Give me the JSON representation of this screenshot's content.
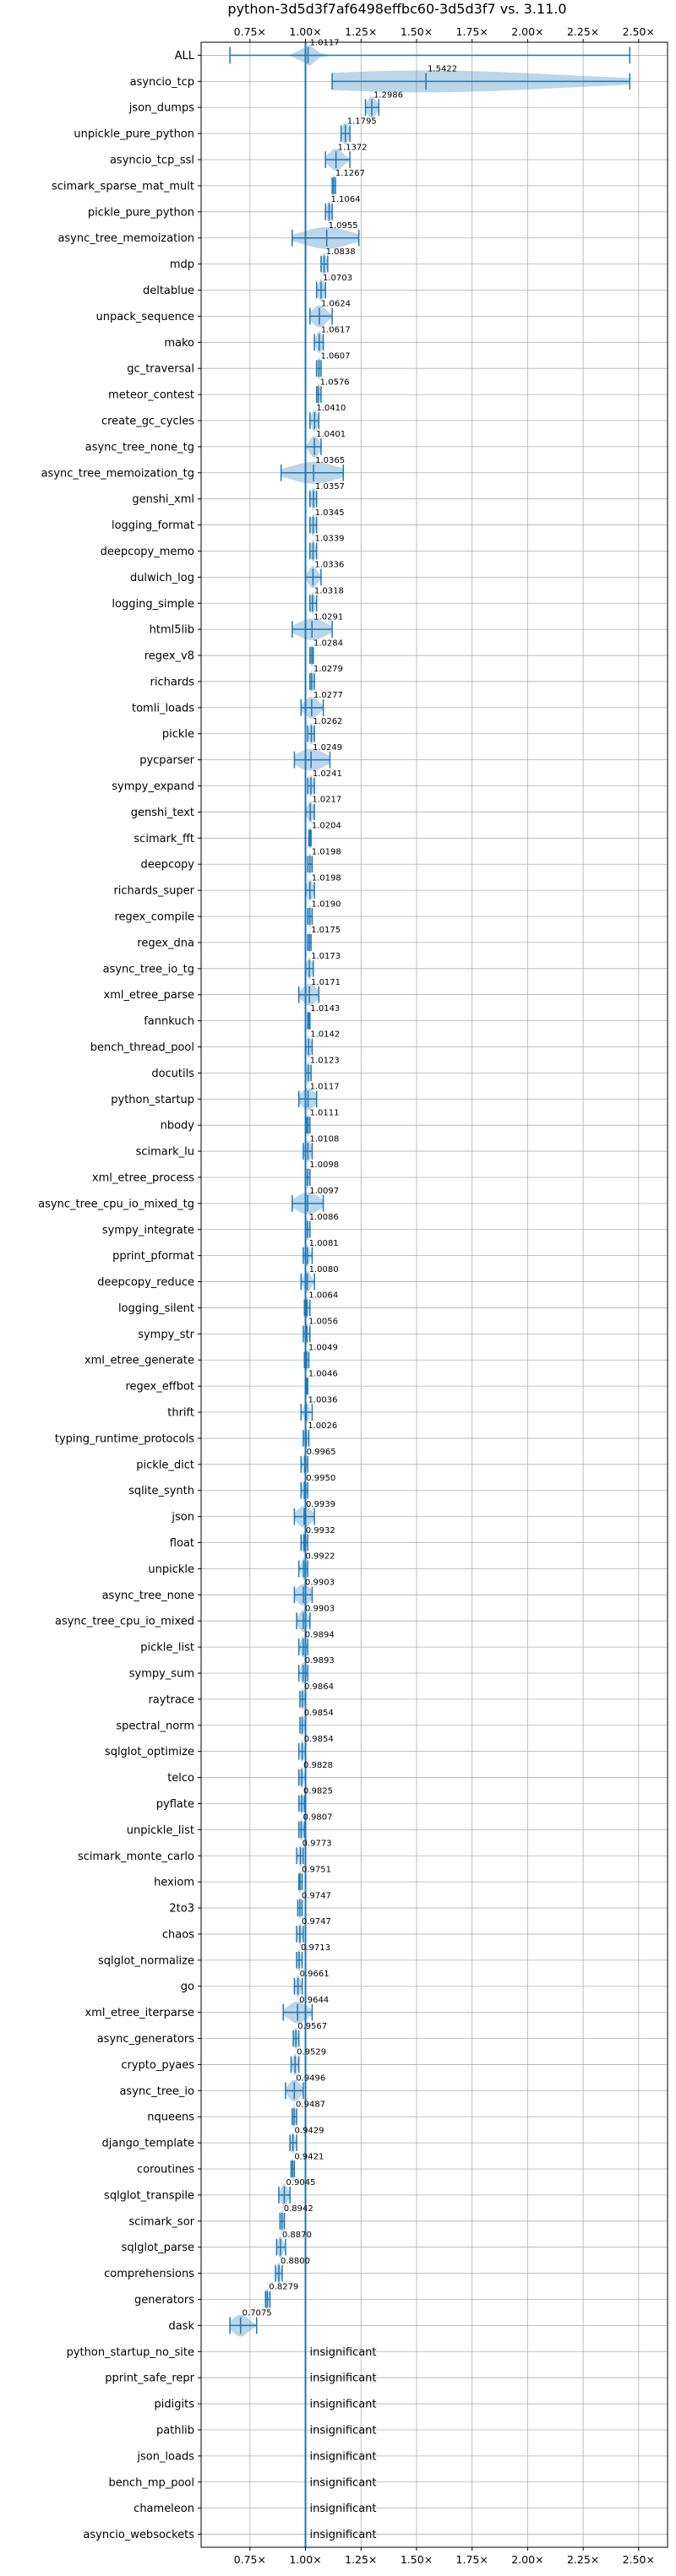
{
  "chart_data": {
    "type": "violin",
    "title": "python-3d5d3f7af6498effbc60-3d5d3f7 vs. 3.11.0",
    "x_ticks": [
      {
        "v": 0.75,
        "label": "0.75×"
      },
      {
        "v": 1.0,
        "label": "1.00×"
      },
      {
        "v": 1.25,
        "label": "1.25×"
      },
      {
        "v": 1.5,
        "label": "1.50×"
      },
      {
        "v": 1.75,
        "label": "1.75×"
      },
      {
        "v": 2.0,
        "label": "2.00×"
      },
      {
        "v": 2.25,
        "label": "2.25×"
      },
      {
        "v": 2.5,
        "label": "2.50×"
      }
    ],
    "xlim": [
      0.53,
      2.63
    ],
    "reference_x": 1.0,
    "grid": true,
    "colors": {
      "violin": "#1f77b4",
      "reference": "#1f77b4",
      "grid": "#b0b0b0"
    },
    "insignificant_label": "insignificant",
    "benchmarks": [
      {
        "name": "ALL",
        "value": 1.0117,
        "label": "1.0117",
        "min": 0.66,
        "max": 2.46,
        "spread": 0.03
      },
      {
        "name": "asyncio_tcp",
        "value": 1.5422,
        "label": "1.5422",
        "min": 1.12,
        "max": 2.46,
        "spread": 0.6
      },
      {
        "name": "json_dumps",
        "value": 1.2986,
        "label": "1.2986",
        "min": 1.27,
        "max": 1.33,
        "spread": 0.02
      },
      {
        "name": "unpickle_pure_python",
        "value": 1.1795,
        "label": "1.1795",
        "min": 1.16,
        "max": 1.2,
        "spread": 0.015
      },
      {
        "name": "asyncio_tcp_ssl",
        "value": 1.1372,
        "label": "1.1372",
        "min": 1.09,
        "max": 1.2,
        "spread": 0.03
      },
      {
        "name": "scimark_sparse_mat_mult",
        "value": 1.1267,
        "label": "1.1267",
        "min": 1.12,
        "max": 1.135,
        "spread": 0.005
      },
      {
        "name": "pickle_pure_python",
        "value": 1.1064,
        "label": "1.1064",
        "min": 1.09,
        "max": 1.12,
        "spread": 0.01
      },
      {
        "name": "async_tree_memoization",
        "value": 1.0955,
        "label": "1.0955",
        "min": 0.94,
        "max": 1.24,
        "spread": 0.1
      },
      {
        "name": "mdp",
        "value": 1.0838,
        "label": "1.0838",
        "min": 1.07,
        "max": 1.1,
        "spread": 0.01
      },
      {
        "name": "deltablue",
        "value": 1.0703,
        "label": "1.0703",
        "min": 1.05,
        "max": 1.09,
        "spread": 0.013
      },
      {
        "name": "unpack_sequence",
        "value": 1.0624,
        "label": "1.0624",
        "min": 1.02,
        "max": 1.12,
        "spread": 0.03
      },
      {
        "name": "mako",
        "value": 1.0617,
        "label": "1.0617",
        "min": 1.04,
        "max": 1.08,
        "spread": 0.013
      },
      {
        "name": "gc_traversal",
        "value": 1.0607,
        "label": "1.0607",
        "min": 1.05,
        "max": 1.07,
        "spread": 0.007
      },
      {
        "name": "meteor_contest",
        "value": 1.0576,
        "label": "1.0576",
        "min": 1.05,
        "max": 1.07,
        "spread": 0.007
      },
      {
        "name": "create_gc_cycles",
        "value": 1.041,
        "label": "1.0410",
        "min": 1.02,
        "max": 1.06,
        "spread": 0.013
      },
      {
        "name": "async_tree_none_tg",
        "value": 1.0401,
        "label": "1.0401",
        "min": 1.0,
        "max": 1.07,
        "spread": 0.02
      },
      {
        "name": "async_tree_memoization_tg",
        "value": 1.0365,
        "label": "1.0365",
        "min": 0.89,
        "max": 1.17,
        "spread": 0.1
      },
      {
        "name": "genshi_xml",
        "value": 1.0357,
        "label": "1.0357",
        "min": 1.02,
        "max": 1.05,
        "spread": 0.01
      },
      {
        "name": "logging_format",
        "value": 1.0345,
        "label": "1.0345",
        "min": 1.02,
        "max": 1.05,
        "spread": 0.01
      },
      {
        "name": "deepcopy_memo",
        "value": 1.0339,
        "label": "1.0339",
        "min": 1.02,
        "max": 1.05,
        "spread": 0.01
      },
      {
        "name": "dulwich_log",
        "value": 1.0336,
        "label": "1.0336",
        "min": 1.0,
        "max": 1.07,
        "spread": 0.02
      },
      {
        "name": "logging_simple",
        "value": 1.0318,
        "label": "1.0318",
        "min": 1.02,
        "max": 1.05,
        "spread": 0.01
      },
      {
        "name": "html5lib",
        "value": 1.0291,
        "label": "1.0291",
        "min": 0.94,
        "max": 1.12,
        "spread": 0.06
      },
      {
        "name": "regex_v8",
        "value": 1.0284,
        "label": "1.0284",
        "min": 1.02,
        "max": 1.035,
        "spread": 0.005
      },
      {
        "name": "richards",
        "value": 1.0279,
        "label": "1.0279",
        "min": 1.02,
        "max": 1.04,
        "spread": 0.007
      },
      {
        "name": "tomli_loads",
        "value": 1.0277,
        "label": "1.0277",
        "min": 0.98,
        "max": 1.08,
        "spread": 0.03
      },
      {
        "name": "pickle",
        "value": 1.0262,
        "label": "1.0262",
        "min": 1.01,
        "max": 1.04,
        "spread": 0.01
      },
      {
        "name": "pycparser",
        "value": 1.0249,
        "label": "1.0249",
        "min": 0.95,
        "max": 1.11,
        "spread": 0.06
      },
      {
        "name": "sympy_expand",
        "value": 1.0241,
        "label": "1.0241",
        "min": 1.01,
        "max": 1.04,
        "spread": 0.01
      },
      {
        "name": "genshi_text",
        "value": 1.0217,
        "label": "1.0217",
        "min": 1.0,
        "max": 1.04,
        "spread": 0.013
      },
      {
        "name": "scimark_fft",
        "value": 1.0204,
        "label": "1.0204",
        "min": 1.015,
        "max": 1.025,
        "spread": 0.004
      },
      {
        "name": "deepcopy",
        "value": 1.0198,
        "label": "1.0198",
        "min": 1.01,
        "max": 1.03,
        "spread": 0.007
      },
      {
        "name": "richards_super",
        "value": 1.0198,
        "label": "1.0198",
        "min": 1.0,
        "max": 1.04,
        "spread": 0.013
      },
      {
        "name": "regex_compile",
        "value": 1.019,
        "label": "1.0190",
        "min": 1.01,
        "max": 1.03,
        "spread": 0.007
      },
      {
        "name": "regex_dna",
        "value": 1.0175,
        "label": "1.0175",
        "min": 1.01,
        "max": 1.025,
        "spread": 0.005
      },
      {
        "name": "async_tree_io_tg",
        "value": 1.0173,
        "label": "1.0173",
        "min": 1.0,
        "max": 1.035,
        "spread": 0.012
      },
      {
        "name": "xml_etree_parse",
        "value": 1.0171,
        "label": "1.0171",
        "min": 0.97,
        "max": 1.06,
        "spread": 0.03
      },
      {
        "name": "fannkuch",
        "value": 1.0143,
        "label": "1.0143",
        "min": 1.01,
        "max": 1.02,
        "spread": 0.004
      },
      {
        "name": "bench_thread_pool",
        "value": 1.0142,
        "label": "1.0142",
        "min": 1.0,
        "max": 1.03,
        "spread": 0.01
      },
      {
        "name": "docutils",
        "value": 1.0123,
        "label": "1.0123",
        "min": 1.0,
        "max": 1.025,
        "spread": 0.008
      },
      {
        "name": "python_startup",
        "value": 1.0117,
        "label": "1.0117",
        "min": 0.97,
        "max": 1.05,
        "spread": 0.03
      },
      {
        "name": "nbody",
        "value": 1.0111,
        "label": "1.0111",
        "min": 1.005,
        "max": 1.02,
        "spread": 0.004
      },
      {
        "name": "scimark_lu",
        "value": 1.0108,
        "label": "1.0108",
        "min": 0.99,
        "max": 1.03,
        "spread": 0.013
      },
      {
        "name": "xml_etree_process",
        "value": 1.0098,
        "label": "1.0098",
        "min": 1.0,
        "max": 1.02,
        "spread": 0.007
      },
      {
        "name": "async_tree_cpu_io_mixed_tg",
        "value": 1.0097,
        "label": "1.0097",
        "min": 0.94,
        "max": 1.08,
        "spread": 0.05
      },
      {
        "name": "sympy_integrate",
        "value": 1.0086,
        "label": "1.0086",
        "min": 1.0,
        "max": 1.02,
        "spread": 0.007
      },
      {
        "name": "pprint_pformat",
        "value": 1.0081,
        "label": "1.0081",
        "min": 0.99,
        "max": 1.03,
        "spread": 0.01
      },
      {
        "name": "deepcopy_reduce",
        "value": 1.008,
        "label": "1.0080",
        "min": 0.98,
        "max": 1.04,
        "spread": 0.015
      },
      {
        "name": "logging_silent",
        "value": 1.0064,
        "label": "1.0064",
        "min": 0.995,
        "max": 1.02,
        "spread": 0.006
      },
      {
        "name": "sympy_str",
        "value": 1.0056,
        "label": "1.0056",
        "min": 0.99,
        "max": 1.02,
        "spread": 0.008
      },
      {
        "name": "xml_etree_generate",
        "value": 1.0049,
        "label": "1.0049",
        "min": 0.995,
        "max": 1.015,
        "spread": 0.006
      },
      {
        "name": "regex_effbot",
        "value": 1.0046,
        "label": "1.0046",
        "min": 1.0,
        "max": 1.01,
        "spread": 0.003
      },
      {
        "name": "thrift",
        "value": 1.0036,
        "label": "1.0036",
        "min": 0.98,
        "max": 1.03,
        "spread": 0.01
      },
      {
        "name": "typing_runtime_protocols",
        "value": 1.0026,
        "label": "1.0026",
        "min": 0.99,
        "max": 1.015,
        "spread": 0.006
      },
      {
        "name": "pickle_dict",
        "value": 0.9965,
        "label": "0.9965",
        "min": 0.98,
        "max": 1.01,
        "spread": 0.008
      },
      {
        "name": "sqlite_synth",
        "value": 0.995,
        "label": "0.9950",
        "min": 0.98,
        "max": 1.01,
        "spread": 0.008
      },
      {
        "name": "json",
        "value": 0.9939,
        "label": "0.9939",
        "min": 0.95,
        "max": 1.04,
        "spread": 0.03
      },
      {
        "name": "float",
        "value": 0.9932,
        "label": "0.9932",
        "min": 0.98,
        "max": 1.01,
        "spread": 0.008
      },
      {
        "name": "unpickle",
        "value": 0.9922,
        "label": "0.9922",
        "min": 0.97,
        "max": 1.01,
        "spread": 0.01
      },
      {
        "name": "async_tree_none",
        "value": 0.9903,
        "label": "0.9903",
        "min": 0.95,
        "max": 1.03,
        "spread": 0.03
      },
      {
        "name": "async_tree_cpu_io_mixed",
        "value": 0.9903,
        "label": "0.9903",
        "min": 0.96,
        "max": 1.02,
        "spread": 0.02
      },
      {
        "name": "pickle_list",
        "value": 0.9894,
        "label": "0.9894",
        "min": 0.97,
        "max": 1.01,
        "spread": 0.01
      },
      {
        "name": "sympy_sum",
        "value": 0.9893,
        "label": "0.9893",
        "min": 0.97,
        "max": 1.01,
        "spread": 0.01
      },
      {
        "name": "raytrace",
        "value": 0.9864,
        "label": "0.9864",
        "min": 0.975,
        "max": 1.0,
        "spread": 0.007
      },
      {
        "name": "spectral_norm",
        "value": 0.9854,
        "label": "0.9854",
        "min": 0.975,
        "max": 1.0,
        "spread": 0.007
      },
      {
        "name": "sqlglot_optimize",
        "value": 0.9854,
        "label": "0.9854",
        "min": 0.97,
        "max": 1.0,
        "spread": 0.008
      },
      {
        "name": "telco",
        "value": 0.9828,
        "label": "0.9828",
        "min": 0.97,
        "max": 1.0,
        "spread": 0.007
      },
      {
        "name": "pyflate",
        "value": 0.9825,
        "label": "0.9825",
        "min": 0.97,
        "max": 0.995,
        "spread": 0.007
      },
      {
        "name": "unpickle_list",
        "value": 0.9807,
        "label": "0.9807",
        "min": 0.97,
        "max": 0.995,
        "spread": 0.007
      },
      {
        "name": "scimark_monte_carlo",
        "value": 0.9773,
        "label": "0.9773",
        "min": 0.96,
        "max": 0.99,
        "spread": 0.008
      },
      {
        "name": "hexiom",
        "value": 0.9751,
        "label": "0.9751",
        "min": 0.97,
        "max": 0.985,
        "spread": 0.005
      },
      {
        "name": "2to3",
        "value": 0.9747,
        "label": "0.9747",
        "min": 0.965,
        "max": 0.985,
        "spread": 0.006
      },
      {
        "name": "chaos",
        "value": 0.9747,
        "label": "0.9747",
        "min": 0.96,
        "max": 0.99,
        "spread": 0.008
      },
      {
        "name": "sqlglot_normalize",
        "value": 0.9713,
        "label": "0.9713",
        "min": 0.96,
        "max": 0.985,
        "spread": 0.007
      },
      {
        "name": "go",
        "value": 0.9661,
        "label": "0.9661",
        "min": 0.95,
        "max": 0.985,
        "spread": 0.01
      },
      {
        "name": "xml_etree_iterparse",
        "value": 0.9644,
        "label": "0.9644",
        "min": 0.9,
        "max": 1.03,
        "spread": 0.04
      },
      {
        "name": "async_generators",
        "value": 0.9567,
        "label": "0.9567",
        "min": 0.945,
        "max": 0.97,
        "spread": 0.007
      },
      {
        "name": "crypto_pyaes",
        "value": 0.9529,
        "label": "0.9529",
        "min": 0.935,
        "max": 0.97,
        "spread": 0.01
      },
      {
        "name": "async_tree_io",
        "value": 0.9496,
        "label": "0.9496",
        "min": 0.91,
        "max": 0.99,
        "spread": 0.025
      },
      {
        "name": "nqueens",
        "value": 0.9487,
        "label": "0.9487",
        "min": 0.94,
        "max": 0.96,
        "spread": 0.006
      },
      {
        "name": "django_template",
        "value": 0.9429,
        "label": "0.9429",
        "min": 0.93,
        "max": 0.96,
        "spread": 0.008
      },
      {
        "name": "coroutines",
        "value": 0.9421,
        "label": "0.9421",
        "min": 0.935,
        "max": 0.95,
        "spread": 0.005
      },
      {
        "name": "sqlglot_transpile",
        "value": 0.9045,
        "label": "0.9045",
        "min": 0.88,
        "max": 0.93,
        "spread": 0.015
      },
      {
        "name": "scimark_sor",
        "value": 0.8942,
        "label": "0.8942",
        "min": 0.885,
        "max": 0.905,
        "spread": 0.005
      },
      {
        "name": "sqlglot_parse",
        "value": 0.887,
        "label": "0.8870",
        "min": 0.87,
        "max": 0.91,
        "spread": 0.012
      },
      {
        "name": "comprehensions",
        "value": 0.88,
        "label": "0.8800",
        "min": 0.865,
        "max": 0.895,
        "spread": 0.008
      },
      {
        "name": "generators",
        "value": 0.8279,
        "label": "0.8279",
        "min": 0.82,
        "max": 0.84,
        "spread": 0.005
      },
      {
        "name": "dask",
        "value": 0.7075,
        "label": "0.7075",
        "min": 0.66,
        "max": 0.78,
        "spread": 0.035
      },
      {
        "name": "python_startup_no_site",
        "insignificant": true
      },
      {
        "name": "pprint_safe_repr",
        "insignificant": true
      },
      {
        "name": "pidigits",
        "insignificant": true
      },
      {
        "name": "pathlib",
        "insignificant": true
      },
      {
        "name": "json_loads",
        "insignificant": true
      },
      {
        "name": "bench_mp_pool",
        "insignificant": true
      },
      {
        "name": "chameleon",
        "insignificant": true
      },
      {
        "name": "asyncio_websockets",
        "insignificant": true
      }
    ]
  }
}
